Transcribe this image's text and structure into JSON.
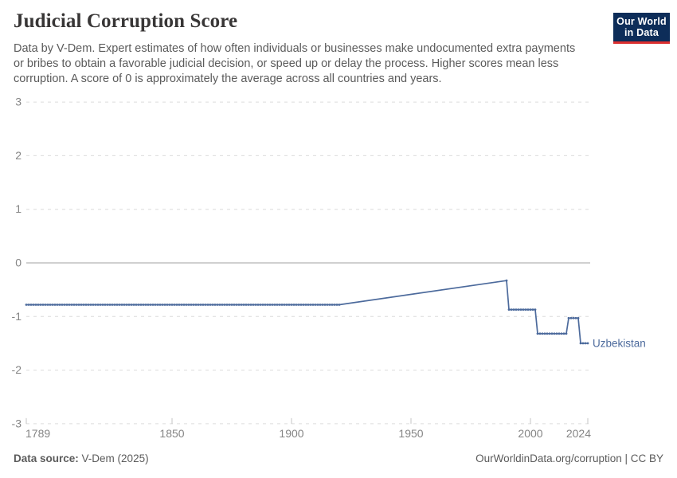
{
  "header": {
    "title": "Judicial Corruption Score",
    "subtitle_lines": [
      "Data by V-Dem. Expert estimates of how often individuals or businesses make undocumented extra payments",
      "or bribes to obtain a favorable judicial decision, or speed up or delay the process. Higher scores mean less",
      "corruption. A score of 0 is approximately the average across all countries and years."
    ],
    "logo": {
      "line1": "Our World",
      "line2": "in Data"
    }
  },
  "footer": {
    "source_label": "Data source:",
    "source_value": "V-Dem (2025)",
    "credit": "OurWorldinData.org/corruption | CC BY"
  },
  "colors": {
    "series": "#4c6a9c",
    "grid": "#dcdcdc",
    "zero_line": "#a0a0a0",
    "tick_mark": "#c4c4c4",
    "axis_text": "#858585",
    "logo_bg": "#0d2d59",
    "logo_stripe": "#dc2f2f",
    "title_text": "#383636",
    "subtitle_text": "#5b5b5b"
  },
  "chart_data": {
    "type": "line",
    "title": "Judicial Corruption Score",
    "xlabel": "",
    "ylabel": "",
    "xlim": [
      1789,
      2024
    ],
    "ylim": [
      -3,
      3
    ],
    "x_ticks": [
      1789,
      1850,
      1900,
      1950,
      2000,
      2024
    ],
    "y_ticks": [
      3,
      2,
      1,
      0,
      -1,
      -2,
      -3
    ],
    "grid": "horizontal-dashed",
    "legend": "end-of-line-label",
    "series": [
      {
        "name": "Uzbekistan",
        "end_label": "Uzbekistan",
        "color": "#4c6a9c",
        "segments": [
          {
            "start_year": 1789,
            "end_year": 1920,
            "value": -0.78,
            "yearly_markers": true
          },
          {
            "start_year": 1920,
            "end_year": 1990,
            "value_start": -0.78,
            "value_end": -0.33,
            "yearly_markers": false,
            "style": "interpolated"
          },
          {
            "start_year": 1990,
            "end_year": 1990,
            "value": -0.33,
            "yearly_markers": true
          },
          {
            "start_year": 1991,
            "end_year": 2002,
            "value": -0.87,
            "yearly_markers": true
          },
          {
            "start_year": 2003,
            "end_year": 2015,
            "value": -1.32,
            "yearly_markers": true
          },
          {
            "start_year": 2016,
            "end_year": 2020,
            "value": -1.03,
            "yearly_markers": true
          },
          {
            "start_year": 2021,
            "end_year": 2024,
            "value": -1.5,
            "yearly_markers": true
          }
        ]
      }
    ]
  }
}
